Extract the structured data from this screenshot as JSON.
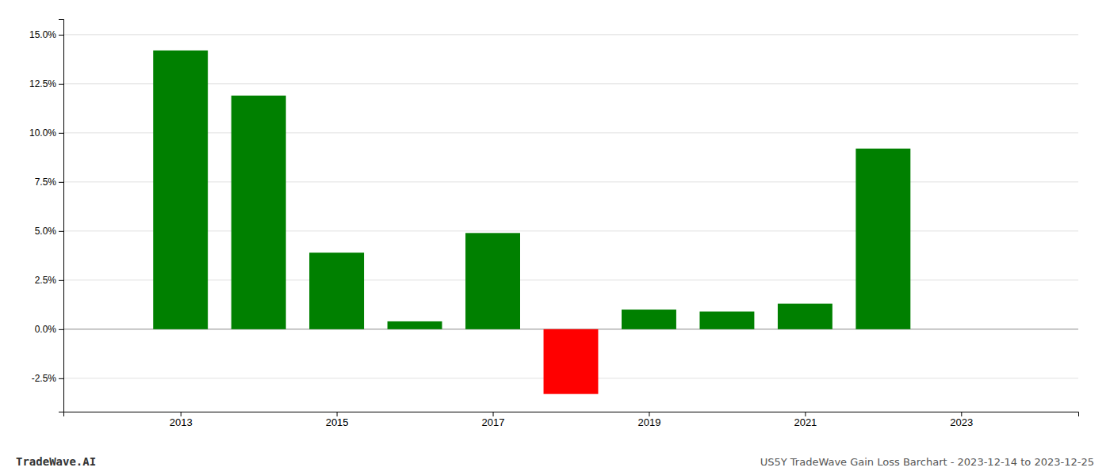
{
  "chart_data": {
    "type": "bar",
    "x": [
      2013,
      2014,
      2015,
      2016,
      2017,
      2018,
      2019,
      2020,
      2021,
      2022
    ],
    "values": [
      0.142,
      0.119,
      0.039,
      0.004,
      0.049,
      -0.033,
      0.01,
      0.009,
      0.013,
      0.092
    ],
    "colors": [
      "#008000",
      "#008000",
      "#008000",
      "#008000",
      "#008000",
      "#ff0000",
      "#008000",
      "#008000",
      "#008000",
      "#008000"
    ],
    "xlim": [
      2011.5,
      2024.5
    ],
    "xticks": [
      2013,
      2015,
      2017,
      2019,
      2021,
      2023
    ],
    "ylim": [
      -0.042,
      0.158
    ],
    "yticks": [
      {
        "value": -0.025,
        "label": "-2.5%"
      },
      {
        "value": 0.0,
        "label": "0.0%"
      },
      {
        "value": 0.025,
        "label": "2.5%"
      },
      {
        "value": 0.05,
        "label": "5.0%"
      },
      {
        "value": 0.075,
        "label": "7.5%"
      },
      {
        "value": 0.1,
        "label": "10.0%"
      },
      {
        "value": 0.125,
        "label": "12.5%"
      },
      {
        "value": 0.15,
        "label": "15.0%"
      }
    ],
    "grid": true,
    "annotations": [
      "TradeWave.AI",
      "US5Y TradeWave Gain Loss Barchart - 2023-12-14 to 2023-12-25"
    ]
  }
}
